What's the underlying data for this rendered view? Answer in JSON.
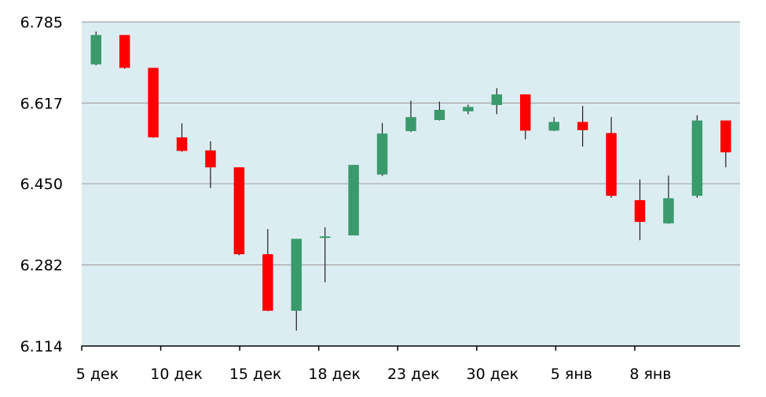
{
  "chart_data": {
    "type": "candlestick",
    "title": "",
    "xlabel": "",
    "ylabel": "",
    "ylim": [
      6.114,
      6.785
    ],
    "y_ticks": [
      "6.785",
      "6.617",
      "6.450",
      "6.282",
      "6.114"
    ],
    "x_tick_labels": [
      "5 дек",
      "10 дек",
      "15 дек",
      "18 дек",
      "23 дек",
      "30 дек",
      "5 янв",
      "8 янв"
    ],
    "grid": "horizontal",
    "colors": {
      "up": "#3a9a6c",
      "down": "#ff0000",
      "plot_background": "#dcedf2",
      "grid": "#a6a6a6",
      "axis": "#000000",
      "wick": "#1f1f1f"
    },
    "candles": [
      {
        "open": 6.697,
        "high": 6.765,
        "low": 6.695,
        "close": 6.758
      },
      {
        "open": 6.758,
        "high": 6.758,
        "low": 6.688,
        "close": 6.69
      },
      {
        "open": 6.69,
        "high": 6.69,
        "low": 6.545,
        "close": 6.546
      },
      {
        "open": 6.546,
        "high": 6.575,
        "low": 6.516,
        "close": 6.518
      },
      {
        "open": 6.519,
        "high": 6.538,
        "low": 6.441,
        "close": 6.484
      },
      {
        "open": 6.484,
        "high": 6.484,
        "low": 6.302,
        "close": 6.304
      },
      {
        "open": 6.304,
        "high": 6.356,
        "low": 6.186,
        "close": 6.187
      },
      {
        "open": 6.187,
        "high": 6.336,
        "low": 6.146,
        "close": 6.336
      },
      {
        "open": 6.338,
        "high": 6.36,
        "low": 6.246,
        "close": 6.341
      },
      {
        "open": 6.343,
        "high": 6.489,
        "low": 6.343,
        "close": 6.489
      },
      {
        "open": 6.469,
        "high": 6.576,
        "low": 6.466,
        "close": 6.554
      },
      {
        "open": 6.559,
        "high": 6.622,
        "low": 6.557,
        "close": 6.588
      },
      {
        "open": 6.582,
        "high": 6.62,
        "low": 6.581,
        "close": 6.603
      },
      {
        "open": 6.6,
        "high": 6.614,
        "low": 6.594,
        "close": 6.609
      },
      {
        "open": 6.613,
        "high": 6.648,
        "low": 6.594,
        "close": 6.635
      },
      {
        "open": 6.635,
        "high": 6.635,
        "low": 6.542,
        "close": 6.56
      },
      {
        "open": 6.56,
        "high": 6.588,
        "low": 6.559,
        "close": 6.578
      },
      {
        "open": 6.578,
        "high": 6.611,
        "low": 6.527,
        "close": 6.561
      },
      {
        "open": 6.555,
        "high": 6.588,
        "low": 6.421,
        "close": 6.425
      },
      {
        "open": 6.416,
        "high": 6.459,
        "low": 6.333,
        "close": 6.371
      },
      {
        "open": 6.368,
        "high": 6.467,
        "low": 6.367,
        "close": 6.42
      },
      {
        "open": 6.425,
        "high": 6.592,
        "low": 6.421,
        "close": 6.581
      },
      {
        "open": 6.581,
        "high": 6.581,
        "low": 6.484,
        "close": 6.515
      }
    ]
  }
}
